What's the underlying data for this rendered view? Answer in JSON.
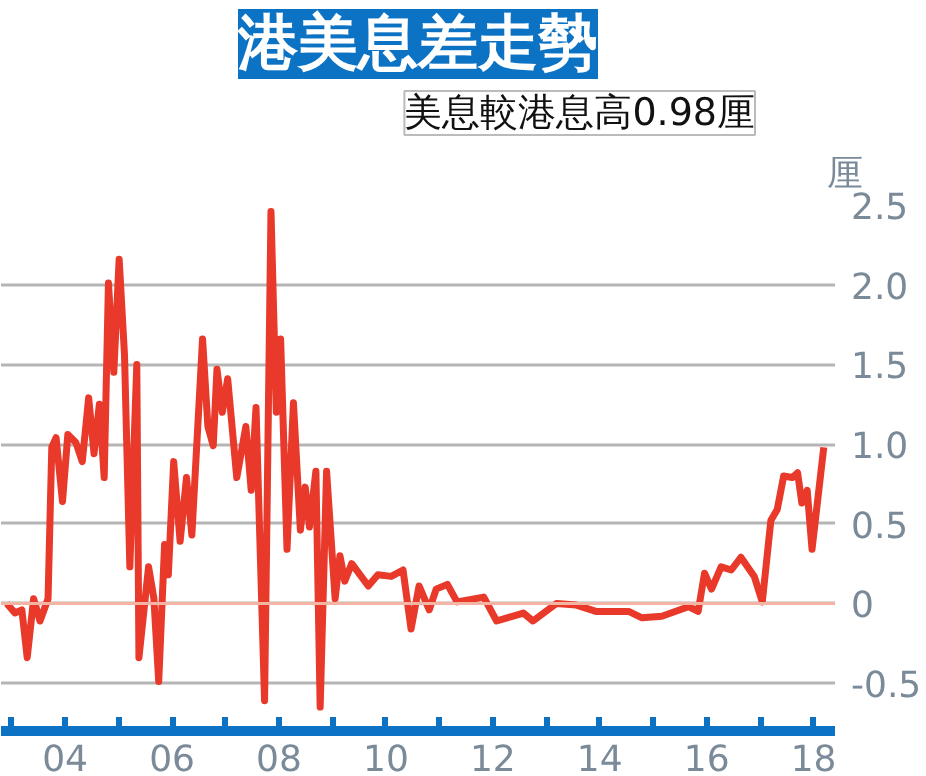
{
  "chart_data": {
    "type": "line",
    "title": "港美息差走勢",
    "ylabel": "厘",
    "annotations": [
      "美息較港息高0.98厘"
    ],
    "x": [
      2002.91,
      2003.06,
      2003.19,
      2003.29,
      2003.41,
      2003.53,
      2003.68,
      2003.75,
      2003.83,
      2003.95,
      2004.05,
      2004.2,
      2004.32,
      2004.44,
      2004.54,
      2004.64,
      2004.73,
      2004.81,
      2004.91,
      2005.01,
      2005.11,
      2005.21,
      2005.34,
      2005.38,
      2005.56,
      2005.66,
      2005.75,
      2005.86,
      2005.93,
      2006.03,
      2006.15,
      2006.27,
      2006.37,
      2006.57,
      2006.67,
      2006.77,
      2006.84,
      2006.94,
      2007.04,
      2007.21,
      2007.38,
      2007.48,
      2007.57,
      2007.73,
      2007.85,
      2007.95,
      2008.03,
      2008.15,
      2008.27,
      2008.4,
      2008.49,
      2008.57,
      2008.69,
      2008.77,
      2008.89,
      2009.05,
      2009.14,
      2009.23,
      2009.36,
      2009.67,
      2009.85,
      2010.1,
      2010.32,
      2010.47,
      2010.62,
      2010.81,
      2010.94,
      2011.15,
      2011.33,
      2011.83,
      2012.07,
      2012.57,
      2012.75,
      2013.19,
      2013.56,
      2013.93,
      2014.54,
      2014.79,
      2015.16,
      2015.66,
      2015.84,
      2015.96,
      2016.09,
      2016.27,
      2016.46,
      2016.64,
      2016.89,
      2017.04,
      2017.2,
      2017.32,
      2017.44,
      2017.6,
      2017.7,
      2017.78,
      2017.88,
      2017.97,
      2018.19
    ],
    "series": [
      {
        "color": "#e8392a",
        "values": [
          0.0,
          -0.06,
          -0.04,
          -0.34,
          0.03,
          -0.11,
          0.03,
          0.98,
          1.04,
          0.64,
          1.06,
          1.01,
          0.89,
          1.29,
          0.94,
          1.25,
          0.79,
          2.01,
          1.45,
          2.16,
          1.56,
          0.23,
          1.5,
          -0.34,
          0.23,
          0.03,
          -0.49,
          0.37,
          0.18,
          0.89,
          0.39,
          0.79,
          0.43,
          1.66,
          1.11,
          0.99,
          1.47,
          1.2,
          1.41,
          0.79,
          1.11,
          0.71,
          1.23,
          -0.61,
          2.46,
          1.2,
          1.66,
          0.34,
          1.26,
          0.46,
          0.73,
          0.48,
          0.83,
          -0.65,
          0.83,
          0.03,
          0.3,
          0.14,
          0.25,
          0.11,
          0.18,
          0.17,
          0.21,
          -0.16,
          0.11,
          -0.04,
          0.09,
          0.12,
          0.01,
          0.04,
          -0.11,
          -0.06,
          -0.11,
          0.0,
          -0.01,
          -0.05,
          -0.05,
          -0.09,
          -0.08,
          -0.02,
          -0.05,
          0.19,
          0.09,
          0.23,
          0.21,
          0.29,
          0.17,
          0.01,
          0.52,
          0.59,
          0.8,
          0.79,
          0.82,
          0.63,
          0.71,
          0.34,
          0.98
        ]
      }
    ],
    "xlim": [
      2002.8,
      2018.4
    ],
    "xticks": [
      {
        "value": 2003,
        "label": null
      },
      {
        "value": 2004,
        "label": "04"
      },
      {
        "value": 2005,
        "label": null
      },
      {
        "value": 2006,
        "label": "06"
      },
      {
        "value": 2007,
        "label": null
      },
      {
        "value": 2008,
        "label": "08"
      },
      {
        "value": 2009,
        "label": null
      },
      {
        "value": 2010,
        "label": "10"
      },
      {
        "value": 2011,
        "label": null
      },
      {
        "value": 2012,
        "label": "12"
      },
      {
        "value": 2013,
        "label": null
      },
      {
        "value": 2014,
        "label": "14"
      },
      {
        "value": 2015,
        "label": null
      },
      {
        "value": 2016,
        "label": "16"
      },
      {
        "value": 2017,
        "label": null
      },
      {
        "value": 2018,
        "label": "18"
      }
    ],
    "ylim": [
      -0.8,
      2.5
    ],
    "yticks": [
      {
        "value": -0.5,
        "label": "-0.5"
      },
      {
        "value": 0,
        "label": "0"
      },
      {
        "value": 0.5,
        "label": "0.5"
      },
      {
        "value": 1,
        "label": "1.0"
      },
      {
        "value": 1.5,
        "label": "1.5"
      },
      {
        "value": 2,
        "label": "2.0"
      },
      {
        "value": 2.5,
        "label": "2.5"
      }
    ],
    "ref_lines": [
      {
        "axis": "y",
        "value": 0,
        "color": "#f4b4a4"
      }
    ],
    "grid": "y",
    "line_style": "solid"
  }
}
